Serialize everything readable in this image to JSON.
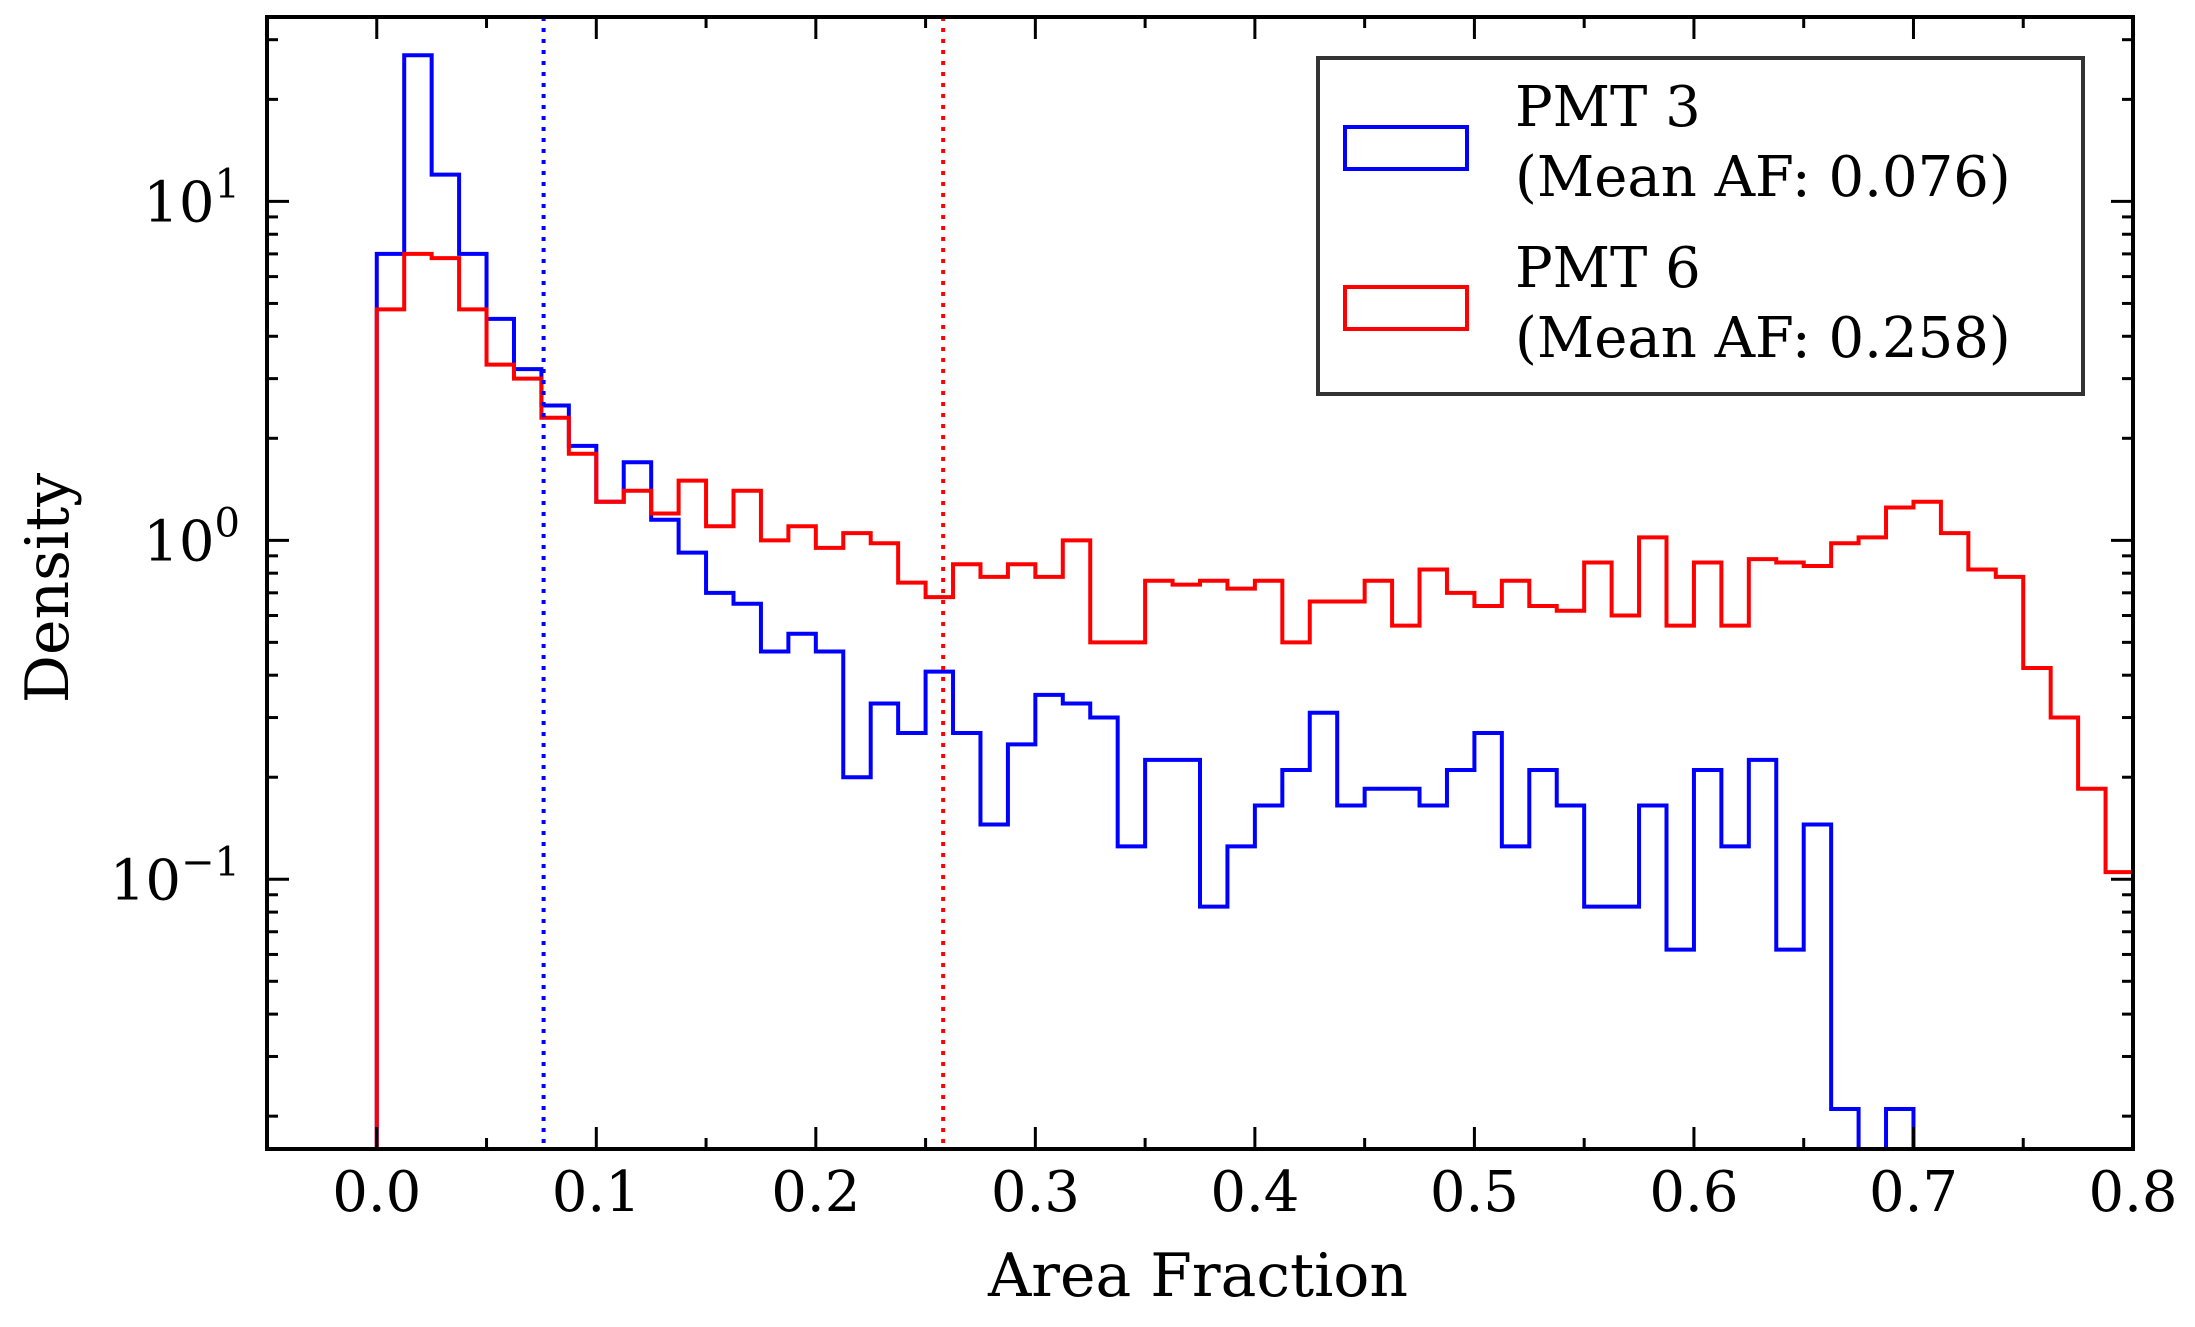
{
  "chart_data": {
    "type": "histogram",
    "xlabel": "Area Fraction",
    "ylabel": "Density",
    "xlim": [
      -0.05,
      0.8
    ],
    "ylim": [
      0.016,
      35
    ],
    "yscale": "log",
    "grid": false,
    "bin_edges_start": 0.0,
    "bin_width": 0.0125,
    "xticks": [
      {
        "value": 0.0,
        "label": "0.0"
      },
      {
        "value": 0.1,
        "label": "0.1"
      },
      {
        "value": 0.2,
        "label": "0.2"
      },
      {
        "value": 0.3,
        "label": "0.3"
      },
      {
        "value": 0.4,
        "label": "0.4"
      },
      {
        "value": 0.5,
        "label": "0.5"
      },
      {
        "value": 0.6,
        "label": "0.6"
      },
      {
        "value": 0.7,
        "label": "0.7"
      },
      {
        "value": 0.8,
        "label": "0.8"
      }
    ],
    "yticks": [
      {
        "value": 10,
        "base": "10",
        "exp": "1"
      },
      {
        "value": 1,
        "base": "10",
        "exp": "0"
      },
      {
        "value": 0.1,
        "base": "10",
        "exp": "−1"
      }
    ],
    "legend": {
      "position": "top-right"
    },
    "series": [
      {
        "label_line1": "PMT 3",
        "label_line2": "(Mean AF: 0.076)",
        "color": "#0000ff",
        "mean": 0.076,
        "values": [
          7.0,
          27.0,
          12.0,
          7.0,
          4.5,
          3.2,
          2.5,
          1.9,
          1.3,
          1.7,
          1.15,
          0.92,
          0.7,
          0.65,
          0.47,
          0.53,
          0.47,
          0.2,
          0.33,
          0.27,
          0.41,
          0.27,
          0.145,
          0.25,
          0.35,
          0.33,
          0.3,
          0.125,
          0.225,
          0.225,
          0.083,
          0.125,
          0.165,
          0.21,
          0.31,
          0.165,
          0.185,
          0.185,
          0.165,
          0.21,
          0.27,
          0.125,
          0.21,
          0.165,
          0.083,
          0.083,
          0.165,
          0.062,
          0.21,
          0.125,
          0.225,
          0.062,
          0.145,
          0.021,
          0.0,
          0.021,
          0.0,
          0.0,
          0.0,
          0.0,
          0.0,
          0.0,
          0.0,
          0.0
        ]
      },
      {
        "label_line1": "PMT 6",
        "label_line2": "(Mean AF: 0.258)",
        "color": "#ff0000",
        "mean": 0.258,
        "values": [
          4.8,
          7.0,
          6.8,
          4.8,
          3.3,
          3.0,
          2.3,
          1.8,
          1.3,
          1.4,
          1.2,
          1.5,
          1.1,
          1.4,
          1.0,
          1.1,
          0.95,
          1.05,
          0.98,
          0.75,
          0.68,
          0.85,
          0.78,
          0.85,
          0.78,
          1.0,
          0.5,
          0.5,
          0.76,
          0.74,
          0.76,
          0.72,
          0.76,
          0.5,
          0.66,
          0.66,
          0.76,
          0.56,
          0.82,
          0.7,
          0.64,
          0.76,
          0.64,
          0.62,
          0.86,
          0.6,
          1.02,
          0.56,
          0.86,
          0.56,
          0.88,
          0.86,
          0.84,
          0.98,
          1.02,
          1.25,
          1.3,
          1.05,
          0.82,
          0.78,
          0.42,
          0.3,
          0.185,
          0.105
        ]
      }
    ]
  }
}
